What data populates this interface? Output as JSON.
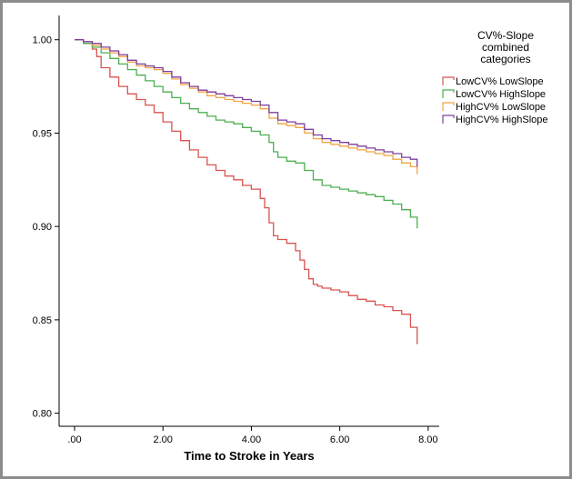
{
  "chart_data": {
    "type": "line",
    "step": true,
    "xlabel": "Time to Stroke in Years",
    "ylabel": "",
    "xlim": [
      -0.35,
      8.25
    ],
    "ylim": [
      0.793,
      1.013
    ],
    "x_ticks": [
      0,
      2,
      4,
      6,
      8
    ],
    "x_tick_labels": [
      ".00",
      "2.00",
      "4.00",
      "6.00",
      "8.00"
    ],
    "y_ticks": [
      0.8,
      0.85,
      0.9,
      0.95,
      1.0
    ],
    "y_tick_labels": [
      "0.80",
      "0.85",
      "0.90",
      "0.95",
      "1.00"
    ],
    "grid": false,
    "legend": {
      "placement": "top-right",
      "title_lines": [
        "CV%-Slope",
        "combined",
        "categories"
      ]
    },
    "series": [
      {
        "name": "LowCV% LowSlope",
        "color": "#d9534f",
        "x": [
          0,
          0.2,
          0.4,
          0.5,
          0.6,
          0.8,
          1.0,
          1.2,
          1.4,
          1.6,
          1.8,
          2.0,
          2.2,
          2.4,
          2.6,
          2.8,
          3.0,
          3.2,
          3.4,
          3.6,
          3.8,
          4.0,
          4.2,
          4.3,
          4.4,
          4.5,
          4.6,
          4.8,
          5.0,
          5.1,
          5.2,
          5.3,
          5.4,
          5.5,
          5.6,
          5.8,
          6.0,
          6.2,
          6.4,
          6.6,
          6.8,
          7.0,
          7.2,
          7.4,
          7.6,
          7.75
        ],
        "y": [
          1.0,
          0.998,
          0.995,
          0.991,
          0.985,
          0.98,
          0.975,
          0.971,
          0.968,
          0.965,
          0.961,
          0.956,
          0.951,
          0.946,
          0.941,
          0.937,
          0.933,
          0.93,
          0.927,
          0.925,
          0.922,
          0.92,
          0.915,
          0.91,
          0.902,
          0.895,
          0.893,
          0.891,
          0.887,
          0.882,
          0.877,
          0.872,
          0.869,
          0.868,
          0.867,
          0.866,
          0.865,
          0.863,
          0.861,
          0.86,
          0.858,
          0.857,
          0.855,
          0.853,
          0.846,
          0.837
        ]
      },
      {
        "name": "LowCV% HighSlope",
        "color": "#4caf50",
        "x": [
          0,
          0.2,
          0.4,
          0.6,
          0.8,
          1.0,
          1.2,
          1.4,
          1.6,
          1.8,
          2.0,
          2.2,
          2.4,
          2.6,
          2.8,
          3.0,
          3.2,
          3.4,
          3.6,
          3.8,
          4.0,
          4.2,
          4.4,
          4.5,
          4.6,
          4.8,
          5.0,
          5.2,
          5.4,
          5.6,
          5.8,
          6.0,
          6.2,
          6.4,
          6.6,
          6.8,
          7.0,
          7.2,
          7.4,
          7.6,
          7.75
        ],
        "y": [
          1.0,
          0.998,
          0.996,
          0.993,
          0.99,
          0.987,
          0.984,
          0.981,
          0.978,
          0.975,
          0.972,
          0.969,
          0.966,
          0.963,
          0.961,
          0.959,
          0.957,
          0.956,
          0.955,
          0.953,
          0.951,
          0.949,
          0.945,
          0.94,
          0.937,
          0.935,
          0.934,
          0.93,
          0.925,
          0.922,
          0.921,
          0.92,
          0.919,
          0.918,
          0.917,
          0.916,
          0.914,
          0.912,
          0.909,
          0.905,
          0.899
        ]
      },
      {
        "name": "HighCV% LowSlope",
        "color": "#f0a542",
        "x": [
          0,
          0.2,
          0.4,
          0.6,
          0.8,
          1.0,
          1.2,
          1.4,
          1.6,
          1.8,
          2.0,
          2.2,
          2.4,
          2.6,
          2.8,
          3.0,
          3.2,
          3.4,
          3.6,
          3.8,
          4.0,
          4.2,
          4.4,
          4.6,
          4.8,
          5.0,
          5.2,
          5.4,
          5.6,
          5.8,
          6.0,
          6.2,
          6.4,
          6.6,
          6.8,
          7.0,
          7.2,
          7.4,
          7.6,
          7.75
        ],
        "y": [
          1.0,
          0.999,
          0.997,
          0.995,
          0.993,
          0.991,
          0.988,
          0.986,
          0.985,
          0.984,
          0.982,
          0.979,
          0.976,
          0.974,
          0.972,
          0.97,
          0.969,
          0.968,
          0.967,
          0.966,
          0.965,
          0.963,
          0.958,
          0.955,
          0.954,
          0.953,
          0.95,
          0.947,
          0.945,
          0.944,
          0.943,
          0.942,
          0.941,
          0.94,
          0.939,
          0.938,
          0.936,
          0.934,
          0.932,
          0.928
        ]
      },
      {
        "name": "HighCV% HighSlope",
        "color": "#7b3f9e",
        "x": [
          0,
          0.2,
          0.4,
          0.6,
          0.8,
          1.0,
          1.2,
          1.4,
          1.6,
          1.8,
          2.0,
          2.2,
          2.4,
          2.6,
          2.8,
          3.0,
          3.2,
          3.4,
          3.6,
          3.8,
          4.0,
          4.2,
          4.4,
          4.6,
          4.8,
          5.0,
          5.2,
          5.4,
          5.6,
          5.8,
          6.0,
          6.2,
          6.4,
          6.6,
          6.8,
          7.0,
          7.2,
          7.4,
          7.6,
          7.75
        ],
        "y": [
          1.0,
          0.999,
          0.998,
          0.996,
          0.994,
          0.992,
          0.989,
          0.987,
          0.986,
          0.985,
          0.983,
          0.98,
          0.977,
          0.975,
          0.973,
          0.972,
          0.971,
          0.97,
          0.969,
          0.968,
          0.967,
          0.965,
          0.961,
          0.957,
          0.956,
          0.955,
          0.952,
          0.949,
          0.947,
          0.946,
          0.945,
          0.944,
          0.943,
          0.942,
          0.941,
          0.94,
          0.939,
          0.937,
          0.936,
          0.932
        ]
      }
    ]
  }
}
